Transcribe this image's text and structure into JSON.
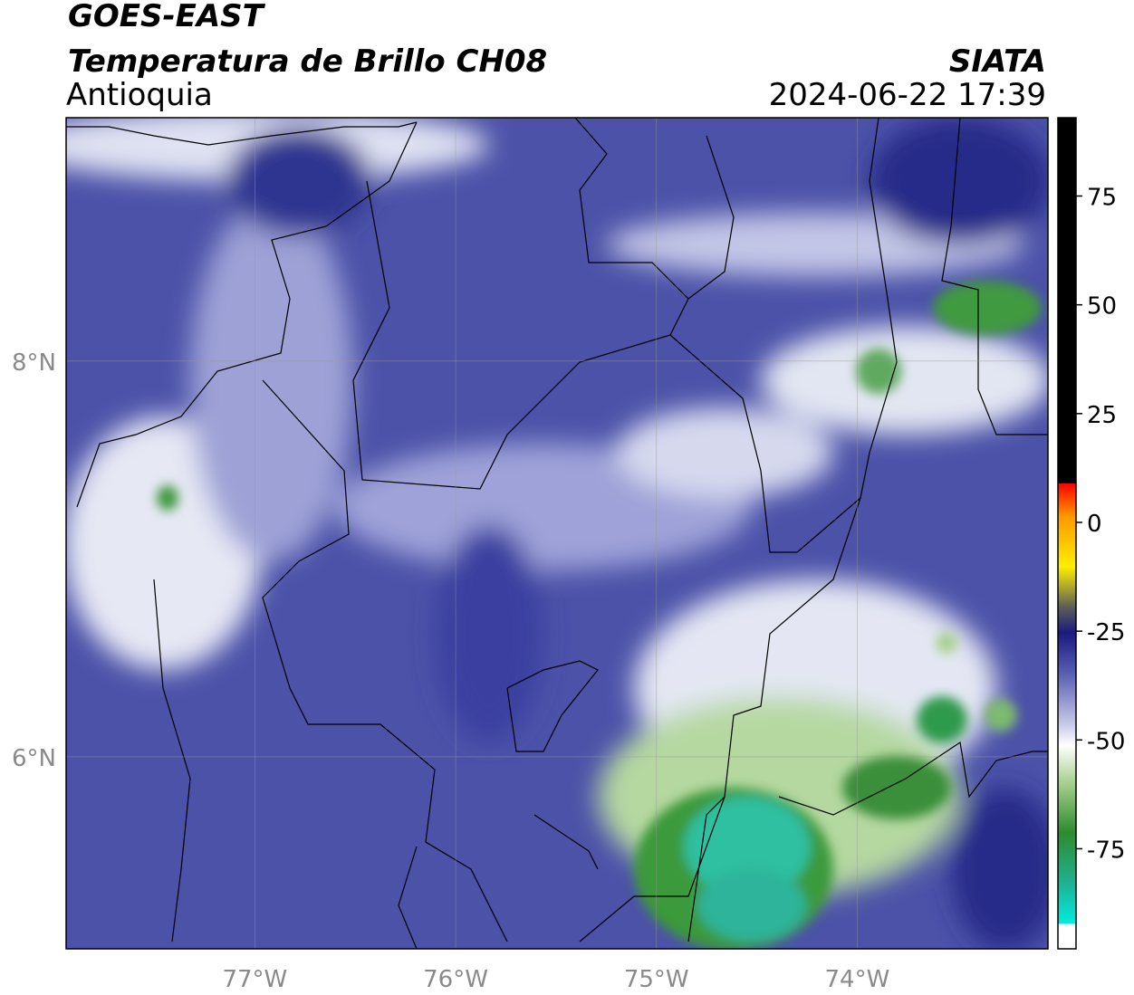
{
  "header": {
    "title": "GOES-EAST",
    "subtitle": "Temperatura de Brillo CH08",
    "region": "Antioquia",
    "source": "SIATA",
    "datetime": "2024-06-22 17:39"
  },
  "map": {
    "xlim": [
      -77.94,
      -73.05
    ],
    "ylim": [
      5.03,
      9.23
    ],
    "xticks": [
      {
        "value": -77,
        "label": "77°W"
      },
      {
        "value": -76,
        "label": "76°W"
      },
      {
        "value": -75,
        "label": "75°W"
      },
      {
        "value": -74,
        "label": "74°W"
      }
    ],
    "yticks": [
      {
        "value": 8,
        "label": "8°N"
      },
      {
        "value": 6,
        "label": "6°N"
      }
    ],
    "grid": true
  },
  "colorbar": {
    "lim": [
      -98,
      93
    ],
    "ticks": [
      75,
      50,
      25,
      0,
      -25,
      -50,
      -75
    ]
  }
}
